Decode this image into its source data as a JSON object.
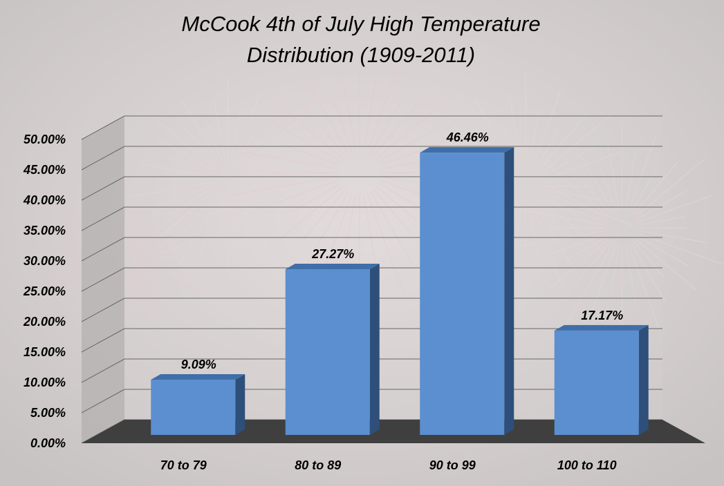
{
  "chart_data": {
    "type": "bar",
    "title_line1": "McCook 4th of July High Temperature",
    "title_line2": "Distribution (1909-2011)",
    "xlabel": "",
    "ylabel": "",
    "categories": [
      "70 to 79",
      "80 to 89",
      "90 to 99",
      "100 to 110"
    ],
    "values": [
      9.09,
      27.27,
      46.46,
      17.17
    ],
    "data_labels": [
      "9.09%",
      "27.27%",
      "46.46%",
      "17.17%"
    ],
    "ylim": [
      0,
      50
    ],
    "yticks": [
      0,
      5,
      10,
      15,
      20,
      25,
      30,
      35,
      40,
      45,
      50
    ],
    "ytick_labels": [
      "0.00%",
      "5.00%",
      "10.00%",
      "15.00%",
      "20.00%",
      "25.00%",
      "30.00%",
      "35.00%",
      "40.00%",
      "45.00%",
      "50.00%"
    ],
    "grid": true,
    "legend": "none",
    "bar_color": "#5b8fd0",
    "bar_side_color": "#2e4f7a",
    "bar_top_color": "#3f6ea8",
    "floor_color": "#3f3f3f",
    "wall_color": "#b4b0b0",
    "background_color": "#cfcaca"
  }
}
